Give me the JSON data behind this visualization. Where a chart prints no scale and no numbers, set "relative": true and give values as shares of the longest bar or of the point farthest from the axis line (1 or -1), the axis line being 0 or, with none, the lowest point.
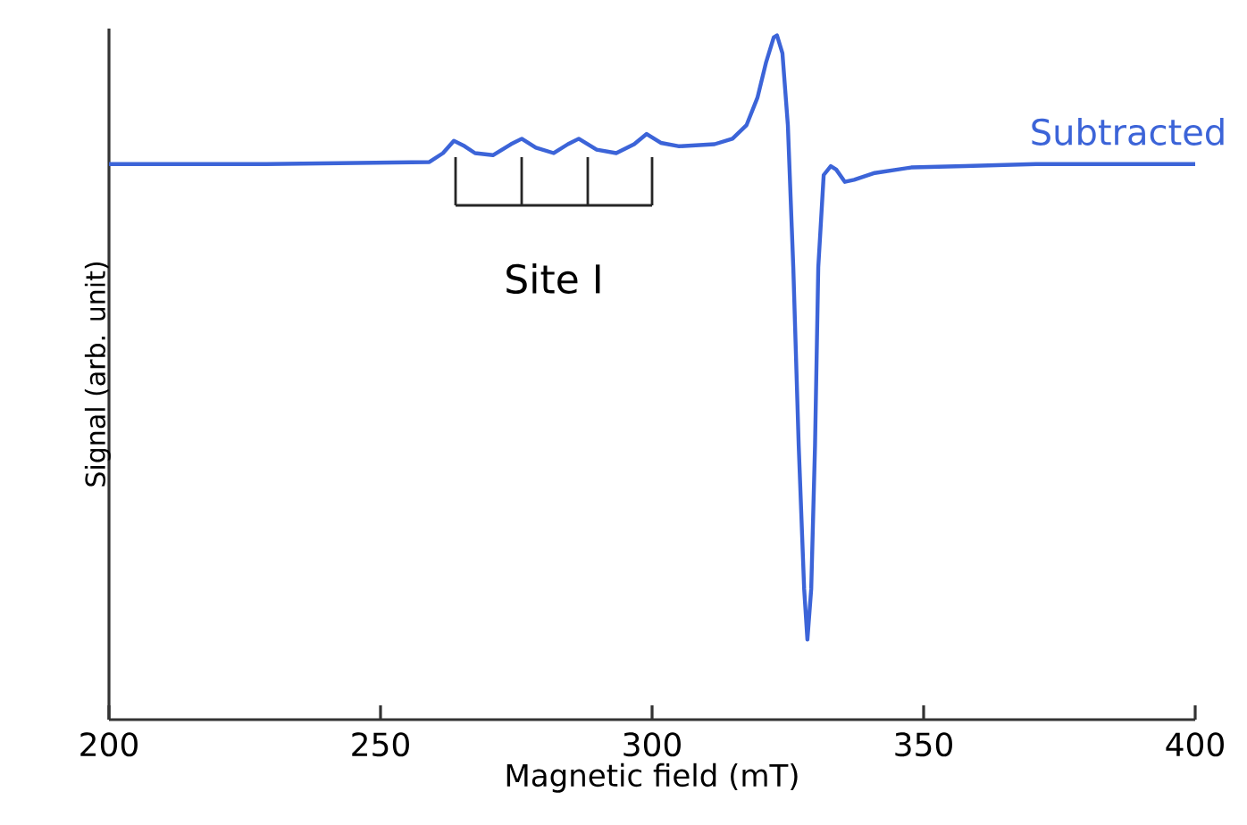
{
  "chart_data": {
    "type": "line",
    "xlabel": "Magnetic field (mT)",
    "ylabel": "Signal (arb. unit)",
    "relative": true,
    "xlim": [
      200,
      400
    ],
    "xticks": [
      200,
      250,
      300,
      350,
      400
    ],
    "legend": false,
    "grid": false,
    "marker": "none",
    "line_style": "solid",
    "annotations": [
      "Site I"
    ],
    "series": [
      {
        "name": "Subtracted",
        "color": "#3c64d8",
        "x": [
          200,
          229,
          259,
          261.5,
          263.5,
          265.5,
          267.4,
          270.7,
          274,
          276,
          278.6,
          281.9,
          284.5,
          286.5,
          289.8,
          293.4,
          296.7,
          299,
          301.6,
          305,
          311.5,
          314.8,
          317.4,
          319.4,
          321,
          322.4,
          323,
          324,
          325,
          326,
          327,
          328,
          328.6,
          329.3,
          330,
          330.6,
          331.6,
          332.9,
          333.9,
          335.5,
          337.2,
          341,
          347.7,
          357.6,
          370.7,
          384,
          400
        ],
        "values": [
          0.812,
          0.812,
          0.815,
          0.828,
          0.846,
          0.838,
          0.828,
          0.825,
          0.841,
          0.849,
          0.836,
          0.828,
          0.841,
          0.849,
          0.833,
          0.828,
          0.841,
          0.856,
          0.843,
          0.838,
          0.841,
          0.849,
          0.869,
          0.909,
          0.961,
          0.997,
          1.0,
          0.974,
          0.869,
          0.661,
          0.4,
          0.191,
          0.117,
          0.191,
          0.4,
          0.661,
          0.796,
          0.809,
          0.804,
          0.786,
          0.789,
          0.799,
          0.807,
          0.809,
          0.812,
          0.812,
          0.812
        ]
      }
    ]
  }
}
